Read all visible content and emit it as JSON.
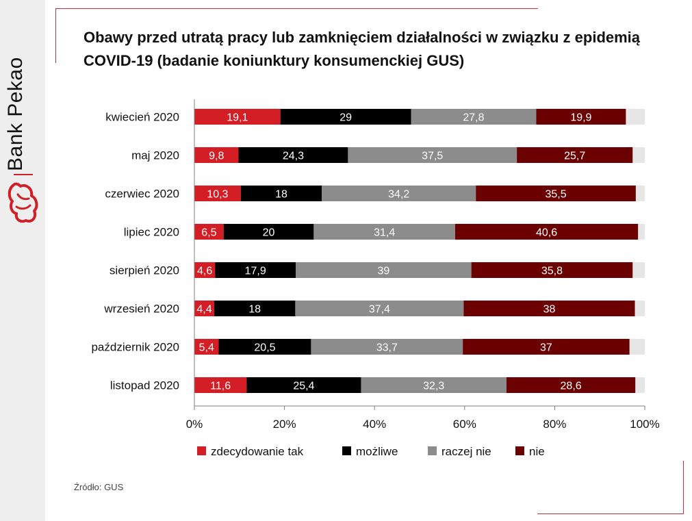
{
  "brand": {
    "name": "Bank Pekao",
    "logo_icon": "pekao-bison-logo-icon",
    "accent_color": "#d31e25"
  },
  "title": "Obawy przed utratą pracy lub zamknięciem działalności w związku z epidemią COVID-19 (badanie koniunktury konsumenckiej GUS)",
  "source": "Źródło: GUS",
  "chart_data": {
    "type": "bar",
    "orientation": "horizontal",
    "stacked": true,
    "categories": [
      "kwiecień 2020",
      "maj 2020",
      "czerwiec 2020",
      "lipiec 2020",
      "sierpień 2020",
      "wrzesień 2020",
      "październik 2020",
      "listopad 2020"
    ],
    "series": [
      {
        "name": "zdecydowanie tak",
        "color": "#d31e25",
        "label_color": "#ffffff",
        "values": [
          19.1,
          9.8,
          10.3,
          6.5,
          4.6,
          4.4,
          5.4,
          11.6
        ]
      },
      {
        "name": "możliwe",
        "color": "#000000",
        "label_color": "#ffffff",
        "values": [
          29,
          24.3,
          18,
          20,
          17.9,
          18,
          20.5,
          25.4
        ]
      },
      {
        "name": "raczej nie",
        "color": "#8c8c8c",
        "label_color": "#ffffff",
        "values": [
          27.8,
          37.5,
          34.2,
          31.4,
          39,
          37.4,
          33.7,
          32.3
        ]
      },
      {
        "name": "nie",
        "color": "#6b0000",
        "label_color": "#ffffff",
        "values": [
          19.9,
          25.7,
          35.5,
          40.6,
          35.8,
          38,
          37,
          28.6
        ]
      }
    ],
    "remainder_color": "#e6e6e6",
    "xlim": [
      0,
      100
    ],
    "xticks": [
      "0%",
      "20%",
      "40%",
      "60%",
      "80%",
      "100%"
    ],
    "legend_position": "bottom",
    "grid": false
  }
}
